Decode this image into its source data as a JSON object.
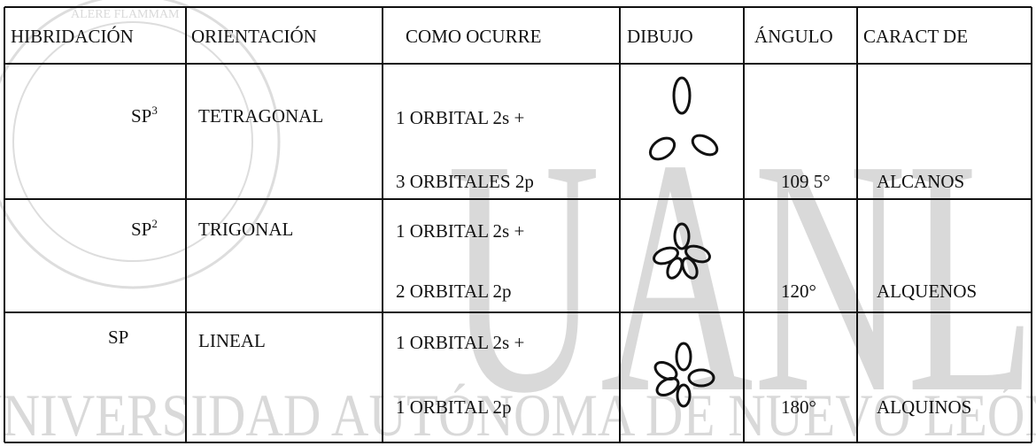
{
  "watermark": {
    "big": "UANL",
    "line": "UNIVERSIDAD AUTÓNOMA DE NUEVO LEÓN",
    "seal": "ALERE FLAMMAM"
  },
  "table": {
    "header": [
      "HIBRIDACIÓN",
      "ORIENTACIÓN",
      "COMO OCURRE",
      "DIBUJO",
      "ÁNGULO",
      "CARACT DE"
    ],
    "rows": [
      {
        "hybrid": "SP",
        "sup": "3",
        "orientation": "TETRAGONAL",
        "how": [
          "1 ORBITAL 2s +",
          "3 ORBITALES 2p"
        ],
        "angle": "109 5°",
        "feature": "ALCANOS"
      },
      {
        "hybrid": "SP",
        "sup": "2",
        "orientation": "TRIGONAL",
        "how": [
          "1 ORBITAL 2s +",
          "2 ORBITAL 2p"
        ],
        "angle": "120°",
        "feature": "ALQUENOS"
      },
      {
        "hybrid": "SP",
        "orientation": "LINEAL",
        "how": [
          "1 ORBITAL 2s +",
          "1 ORBITAL 2p"
        ],
        "angle": "180°",
        "feature": "ALQUINOS"
      }
    ]
  }
}
